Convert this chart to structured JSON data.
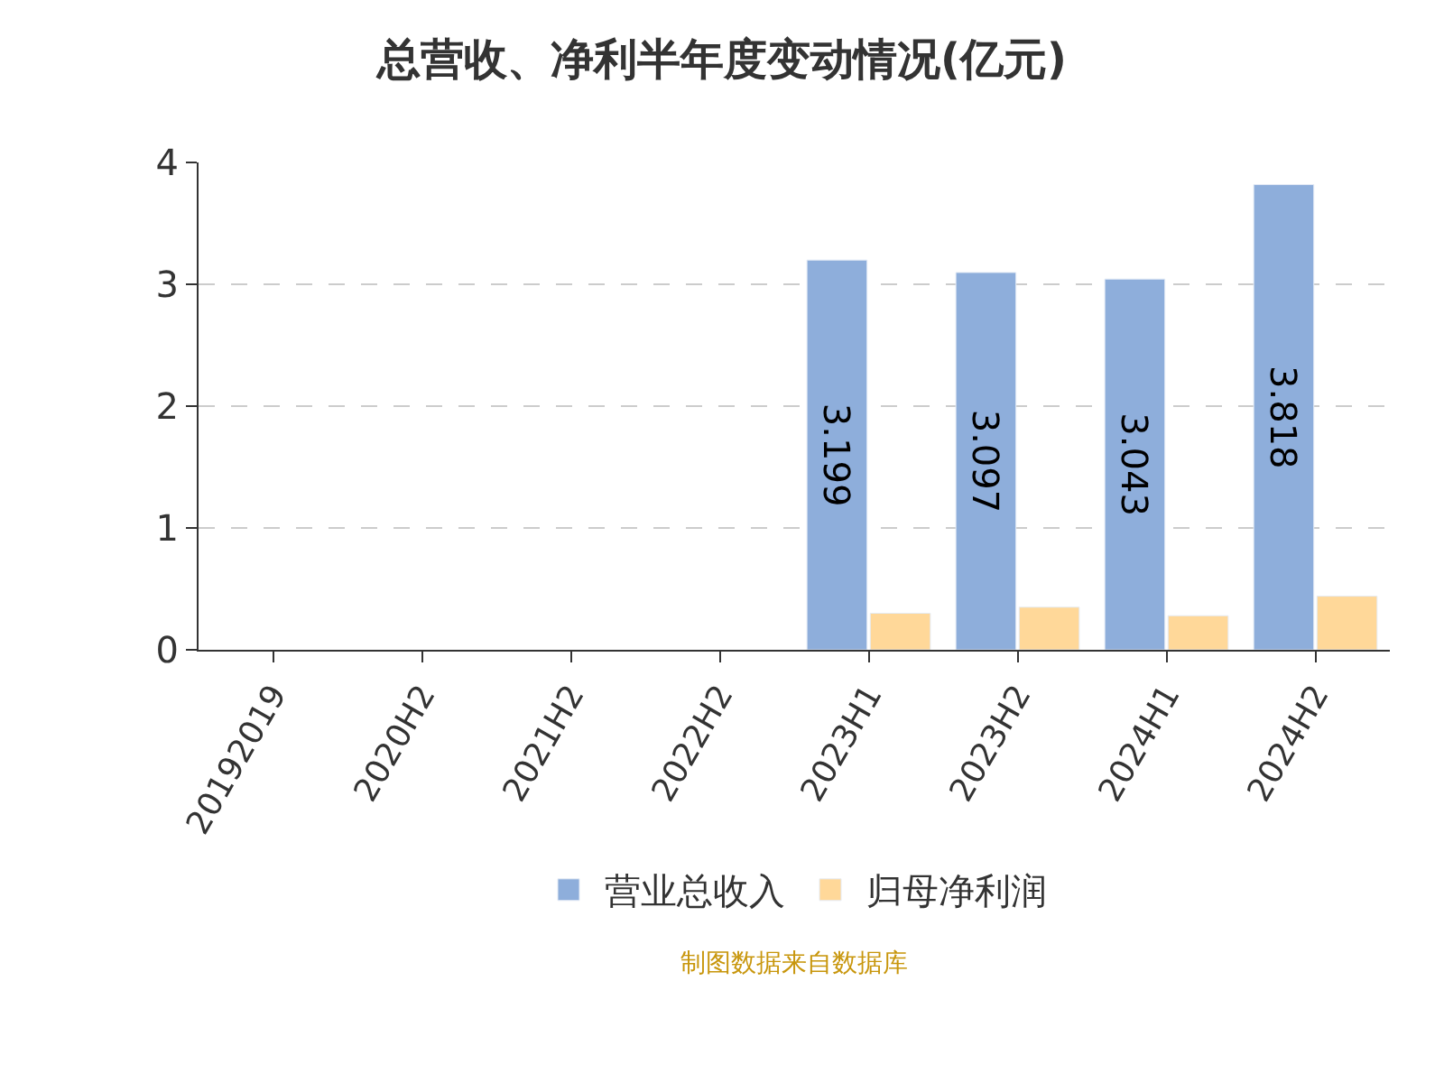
{
  "chart_data": {
    "type": "bar",
    "title": "总营收、净利半年度变动情况(亿元)",
    "categories": [
      "20192019",
      "2020H2",
      "2021H2",
      "2022H2",
      "2023H1",
      "2023H2",
      "2024H1",
      "2024H2"
    ],
    "series": [
      {
        "name": "营业总收入",
        "color": "#8eaedb",
        "values": [
          null,
          null,
          null,
          null,
          3.199,
          3.097,
          3.043,
          3.818
        ],
        "value_labels": [
          null,
          null,
          null,
          null,
          "3.199",
          "3.097",
          "3.043",
          "3.818"
        ]
      },
      {
        "name": "归母净利润",
        "color": "#ffd899",
        "values": [
          null,
          null,
          null,
          null,
          0.3,
          0.35,
          0.28,
          0.44
        ]
      }
    ],
    "ylim": [
      0,
      4
    ],
    "yticks": [
      0,
      1,
      2,
      3,
      4
    ],
    "grid": "y",
    "legend": "bottom",
    "annotations": [
      "制图数据来自数据库"
    ]
  }
}
